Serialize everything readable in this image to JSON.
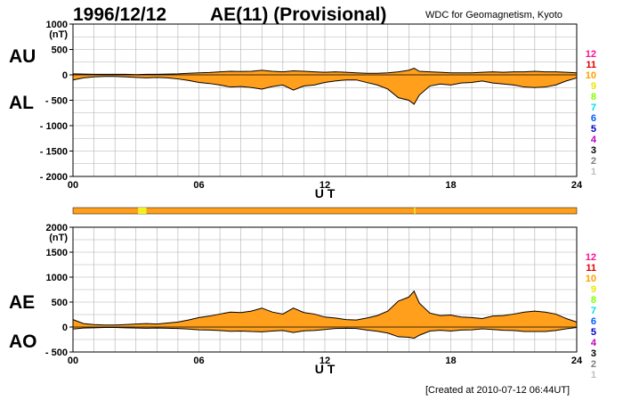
{
  "header": {
    "date": "1996/12/12",
    "index": "AE(11) (Provisional)",
    "org": "WDC for Geomagnetism, Kyoto"
  },
  "footer": {
    "created": "[Created at 2010-07-12 06:44UT]"
  },
  "colors": {
    "fill": "#ff9f1c",
    "line": "#000000",
    "grid": "#b0b0b0",
    "highlight": "#f0f020"
  },
  "chart_data": [
    {
      "type": "area",
      "title": "AU / AL",
      "labels": {
        "upper": "AU",
        "lower": "AL"
      },
      "xlabel": "U T",
      "ylabel": "(nT)",
      "xlim": [
        0,
        24
      ],
      "ylim": [
        -2000,
        1000
      ],
      "xticks": [
        "00",
        "06",
        "12",
        "18",
        "24"
      ],
      "yticks": [
        "1000",
        "500",
        "0",
        "- 500",
        "- 1000",
        "- 1500",
        "- 2000"
      ],
      "grid": true,
      "series": [
        {
          "name": "AU",
          "x": [
            0,
            0.5,
            1,
            1.5,
            2,
            2.5,
            3,
            3.5,
            4,
            4.5,
            5,
            5.5,
            6,
            6.5,
            7,
            7.5,
            8,
            8.5,
            9,
            9.5,
            10,
            10.5,
            11,
            11.5,
            12,
            12.5,
            13,
            13.5,
            14,
            14.5,
            15,
            15.5,
            16,
            16.25,
            16.5,
            17,
            17.5,
            18,
            18.5,
            19,
            19.5,
            20,
            20.5,
            21,
            21.5,
            22,
            22.5,
            23,
            23.5,
            24
          ],
          "values": [
            20,
            15,
            10,
            10,
            10,
            10,
            5,
            10,
            10,
            15,
            20,
            30,
            40,
            45,
            60,
            70,
            65,
            70,
            90,
            70,
            60,
            80,
            70,
            60,
            50,
            60,
            50,
            40,
            30,
            30,
            40,
            60,
            90,
            130,
            70,
            60,
            50,
            40,
            40,
            40,
            50,
            60,
            50,
            60,
            60,
            70,
            60,
            60,
            50,
            40
          ]
        },
        {
          "name": "AL",
          "x": [
            0,
            0.5,
            1,
            1.5,
            2,
            2.5,
            3,
            3.5,
            4,
            4.5,
            5,
            5.5,
            6,
            6.5,
            7,
            7.5,
            8,
            8.5,
            9,
            9.5,
            10,
            10.5,
            11,
            11.5,
            12,
            12.5,
            13,
            13.5,
            14,
            14.5,
            15,
            15.5,
            16,
            16.25,
            16.5,
            17,
            17.5,
            18,
            18.5,
            19,
            19.5,
            20,
            20.5,
            21,
            21.5,
            22,
            22.5,
            23,
            23.5,
            24
          ],
          "values": [
            -100,
            -60,
            -40,
            -30,
            -30,
            -40,
            -50,
            -60,
            -50,
            -60,
            -80,
            -110,
            -150,
            -170,
            -200,
            -240,
            -230,
            -250,
            -280,
            -230,
            -200,
            -300,
            -220,
            -200,
            -150,
            -120,
            -100,
            -100,
            -150,
            -200,
            -280,
            -450,
            -500,
            -580,
            -400,
            -220,
            -180,
            -200,
            -160,
            -150,
            -120,
            -160,
            -180,
            -200,
            -240,
            -250,
            -240,
            -200,
            -120,
            -60
          ]
        }
      ]
    },
    {
      "type": "area",
      "title": "AE / AO",
      "labels": {
        "upper": "AE",
        "lower": "AO"
      },
      "xlabel": "U T",
      "ylabel": "(nT)",
      "xlim": [
        0,
        24
      ],
      "ylim": [
        -500,
        2000
      ],
      "xticks": [
        "00",
        "06",
        "12",
        "18",
        "24"
      ],
      "yticks": [
        "2000",
        "1500",
        "1000",
        "500",
        "0",
        "- 500"
      ],
      "grid": true,
      "series": [
        {
          "name": "AE",
          "x": [
            0,
            0.5,
            1,
            1.5,
            2,
            2.5,
            3,
            3.5,
            4,
            4.5,
            5,
            5.5,
            6,
            6.5,
            7,
            7.5,
            8,
            8.5,
            9,
            9.5,
            10,
            10.5,
            11,
            11.5,
            12,
            12.5,
            13,
            13.5,
            14,
            14.5,
            15,
            15.5,
            16,
            16.25,
            16.5,
            17,
            17.5,
            18,
            18.5,
            19,
            19.5,
            20,
            20.5,
            21,
            21.5,
            22,
            22.5,
            23,
            23.5,
            24
          ],
          "values": [
            150,
            70,
            50,
            40,
            40,
            50,
            60,
            70,
            60,
            80,
            100,
            140,
            190,
            220,
            260,
            300,
            290,
            320,
            380,
            300,
            260,
            380,
            290,
            260,
            200,
            180,
            150,
            140,
            180,
            230,
            320,
            520,
            600,
            720,
            480,
            280,
            230,
            240,
            200,
            190,
            170,
            220,
            230,
            260,
            300,
            320,
            300,
            260,
            170,
            100
          ]
        },
        {
          "name": "AO",
          "x": [
            0,
            0.5,
            1,
            1.5,
            2,
            2.5,
            3,
            3.5,
            4,
            4.5,
            5,
            5.5,
            6,
            6.5,
            7,
            7.5,
            8,
            8.5,
            9,
            9.5,
            10,
            10.5,
            11,
            11.5,
            12,
            12.5,
            13,
            13.5,
            14,
            14.5,
            15,
            15.5,
            16,
            16.25,
            16.5,
            17,
            17.5,
            18,
            18.5,
            19,
            19.5,
            20,
            20.5,
            21,
            21.5,
            22,
            22.5,
            23,
            23.5,
            24
          ],
          "values": [
            -40,
            -20,
            -15,
            -10,
            -10,
            -15,
            -20,
            -25,
            -20,
            -25,
            -30,
            -40,
            -55,
            -60,
            -70,
            -85,
            -80,
            -90,
            -95,
            -80,
            -70,
            -110,
            -75,
            -70,
            -50,
            -30,
            -25,
            -30,
            -60,
            -85,
            -120,
            -195,
            -205,
            -225,
            -165,
            -80,
            -65,
            -80,
            -60,
            -55,
            -35,
            -50,
            -65,
            -70,
            -90,
            -90,
            -90,
            -70,
            -35,
            -10
          ]
        }
      ]
    }
  ],
  "station_count_legend": {
    "counts": [
      "12",
      "11",
      "10",
      "9",
      "8",
      "7",
      "6",
      "5",
      "4",
      "3",
      "2",
      "1"
    ],
    "colors": [
      "#ff1090",
      "#e00000",
      "#ffa000",
      "#e8e800",
      "#80ff00",
      "#00e0e0",
      "#0060ff",
      "#0000c0",
      "#c000c0",
      "#000000",
      "#808080",
      "#c0c0c0"
    ]
  }
}
